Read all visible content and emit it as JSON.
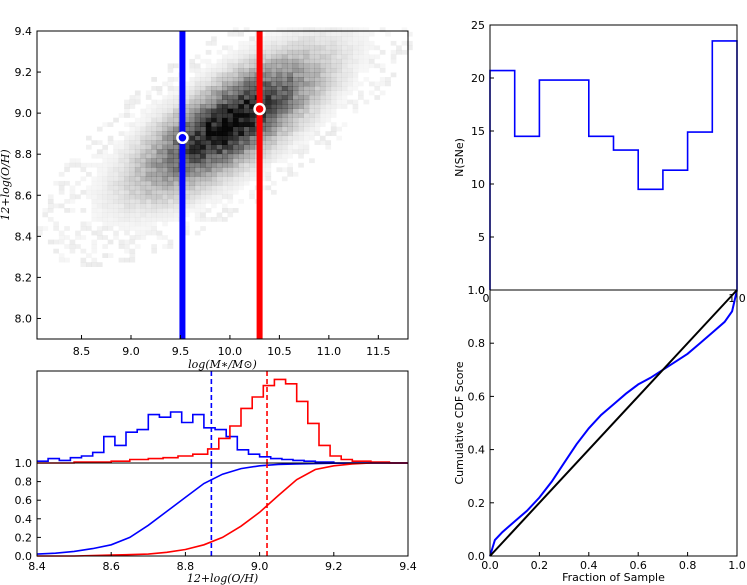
{
  "chart_data": [
    {
      "id": "mass-metallicity",
      "type": "heatmap",
      "xlabel": "log(M∗/M⊙)",
      "ylabel": "12+log(O/H)",
      "xlim": [
        8.05,
        11.8
      ],
      "ylim": [
        7.9,
        9.4
      ],
      "xticks": [
        "8.5",
        "9.0",
        "9.5",
        "10.0",
        "10.5",
        "11.0",
        "11.5"
      ],
      "yticks": [
        "8.0",
        "8.2",
        "8.4",
        "8.6",
        "8.8",
        "9.0",
        "9.2",
        "9.4"
      ],
      "vertical_lines": [
        {
          "x": 9.52,
          "color": "#0000ff"
        },
        {
          "x": 10.3,
          "color": "#ff0000"
        }
      ],
      "markers": [
        {
          "x": 9.52,
          "y": 8.88
        },
        {
          "x": 10.3,
          "y": 9.02
        }
      ],
      "density": {
        "center": [
          10.0,
          8.95
        ],
        "slope": 0.33,
        "sigma_along": 0.75,
        "sigma_across": 0.13,
        "color": "#000000"
      }
    },
    {
      "id": "metallicity-histograms",
      "type": "line",
      "xlim": [
        8.4,
        9.4
      ],
      "yticks": [
        "1.0"
      ],
      "series": [
        {
          "color": "#0000ff",
          "style": "step",
          "x": [
            8.4,
            8.43,
            8.46,
            8.49,
            8.52,
            8.55,
            8.58,
            8.61,
            8.64,
            8.67,
            8.7,
            8.73,
            8.76,
            8.79,
            8.82,
            8.85,
            8.88,
            8.91,
            8.94,
            8.97,
            9.0,
            9.03,
            9.06,
            9.09,
            9.12,
            9.15,
            9.2,
            9.3
          ],
          "values": [
            0.02,
            0.05,
            0.03,
            0.06,
            0.08,
            0.12,
            0.3,
            0.2,
            0.35,
            0.38,
            0.55,
            0.52,
            0.58,
            0.46,
            0.55,
            0.4,
            0.38,
            0.3,
            0.15,
            0.1,
            0.07,
            0.05,
            0.04,
            0.03,
            0.02,
            0.01,
            0.0,
            0.0
          ]
        },
        {
          "color": "#ff0000",
          "style": "step",
          "x": [
            8.4,
            8.5,
            8.6,
            8.65,
            8.7,
            8.74,
            8.78,
            8.82,
            8.86,
            8.89,
            8.92,
            8.95,
            8.98,
            9.01,
            9.04,
            9.07,
            9.1,
            9.13,
            9.16,
            9.19,
            9.22,
            9.25,
            9.3,
            9.35,
            9.4
          ],
          "values": [
            0.0,
            0.01,
            0.02,
            0.04,
            0.05,
            0.06,
            0.08,
            0.1,
            0.16,
            0.28,
            0.42,
            0.62,
            0.75,
            0.88,
            0.95,
            0.9,
            0.7,
            0.45,
            0.2,
            0.08,
            0.04,
            0.02,
            0.01,
            0.0,
            0.0
          ]
        }
      ],
      "vertical_lines": [
        {
          "x": 8.87,
          "color": "#0000ff",
          "dash": "dashed"
        },
        {
          "x": 9.02,
          "color": "#ff0000",
          "dash": "dashed"
        }
      ]
    },
    {
      "id": "metallicity-cdf",
      "type": "line",
      "xlabel": "12+log(O/H)",
      "xlim": [
        8.4,
        9.4
      ],
      "ylim": [
        0.0,
        1.0
      ],
      "xticks": [
        "8.4",
        "8.6",
        "8.8",
        "9.0",
        "9.2",
        "9.4"
      ],
      "yticks": [
        "0.0",
        "0.2",
        "0.4",
        "0.6",
        "0.8"
      ],
      "series": [
        {
          "color": "#0000ff",
          "x": [
            8.4,
            8.45,
            8.5,
            8.55,
            8.6,
            8.65,
            8.7,
            8.75,
            8.8,
            8.85,
            8.9,
            8.95,
            9.0,
            9.05,
            9.1,
            9.2,
            9.3,
            9.4
          ],
          "values": [
            0.02,
            0.03,
            0.05,
            0.08,
            0.12,
            0.2,
            0.33,
            0.48,
            0.63,
            0.78,
            0.88,
            0.94,
            0.97,
            0.985,
            0.99,
            0.998,
            1.0,
            1.0
          ]
        },
        {
          "color": "#ff0000",
          "x": [
            8.4,
            8.5,
            8.6,
            8.7,
            8.75,
            8.8,
            8.85,
            8.9,
            8.95,
            9.0,
            9.05,
            9.1,
            9.15,
            9.2,
            9.25,
            9.3,
            9.4
          ],
          "values": [
            0.0,
            0.0,
            0.01,
            0.02,
            0.04,
            0.07,
            0.12,
            0.2,
            0.32,
            0.47,
            0.65,
            0.82,
            0.93,
            0.97,
            0.99,
            1.0,
            1.0
          ]
        }
      ],
      "vertical_lines": [
        {
          "x": 8.87,
          "color": "#0000ff",
          "dash": "dashed"
        },
        {
          "x": 9.02,
          "color": "#ff0000",
          "dash": "dashed"
        }
      ]
    },
    {
      "id": "sne-histogram",
      "type": "bar",
      "ylabel": "N(SNe)",
      "xlim": [
        0,
        1
      ],
      "ylim": [
        0,
        25
      ],
      "yticks": [
        "0",
        "5",
        "10",
        "15",
        "20",
        "25"
      ],
      "xticks": [
        "0",
        "1.0"
      ],
      "bin_edges": [
        0.0,
        0.1,
        0.2,
        0.3,
        0.4,
        0.5,
        0.6,
        0.7,
        0.8,
        0.9,
        1.0
      ],
      "values": [
        20.7,
        14.5,
        19.8,
        19.8,
        14.5,
        13.2,
        9.5,
        11.3,
        14.9,
        23.5
      ],
      "color": "#0000ff"
    },
    {
      "id": "cumulative-cdf-score",
      "type": "line",
      "xlabel": "Fraction of Sample",
      "ylabel": "Cumulative CDF Score",
      "xlim": [
        0,
        1
      ],
      "ylim": [
        0,
        1
      ],
      "xticks": [
        "0.0",
        "0.2",
        "0.4",
        "0.6",
        "0.8",
        "1.0"
      ],
      "yticks": [
        "0.0",
        "0.2",
        "0.4",
        "0.6",
        "0.8",
        "1.0"
      ],
      "series": [
        {
          "color": "#0000ff",
          "x": [
            0.0,
            0.02,
            0.05,
            0.1,
            0.15,
            0.2,
            0.25,
            0.3,
            0.35,
            0.4,
            0.45,
            0.5,
            0.55,
            0.6,
            0.65,
            0.7,
            0.75,
            0.8,
            0.85,
            0.9,
            0.95,
            0.98,
            1.0
          ],
          "values": [
            0.0,
            0.06,
            0.09,
            0.13,
            0.17,
            0.22,
            0.28,
            0.35,
            0.42,
            0.48,
            0.53,
            0.57,
            0.61,
            0.645,
            0.67,
            0.7,
            0.73,
            0.76,
            0.8,
            0.84,
            0.88,
            0.92,
            1.0
          ]
        },
        {
          "color": "#000000",
          "x": [
            0,
            1
          ],
          "values": [
            0,
            1
          ]
        }
      ]
    }
  ]
}
